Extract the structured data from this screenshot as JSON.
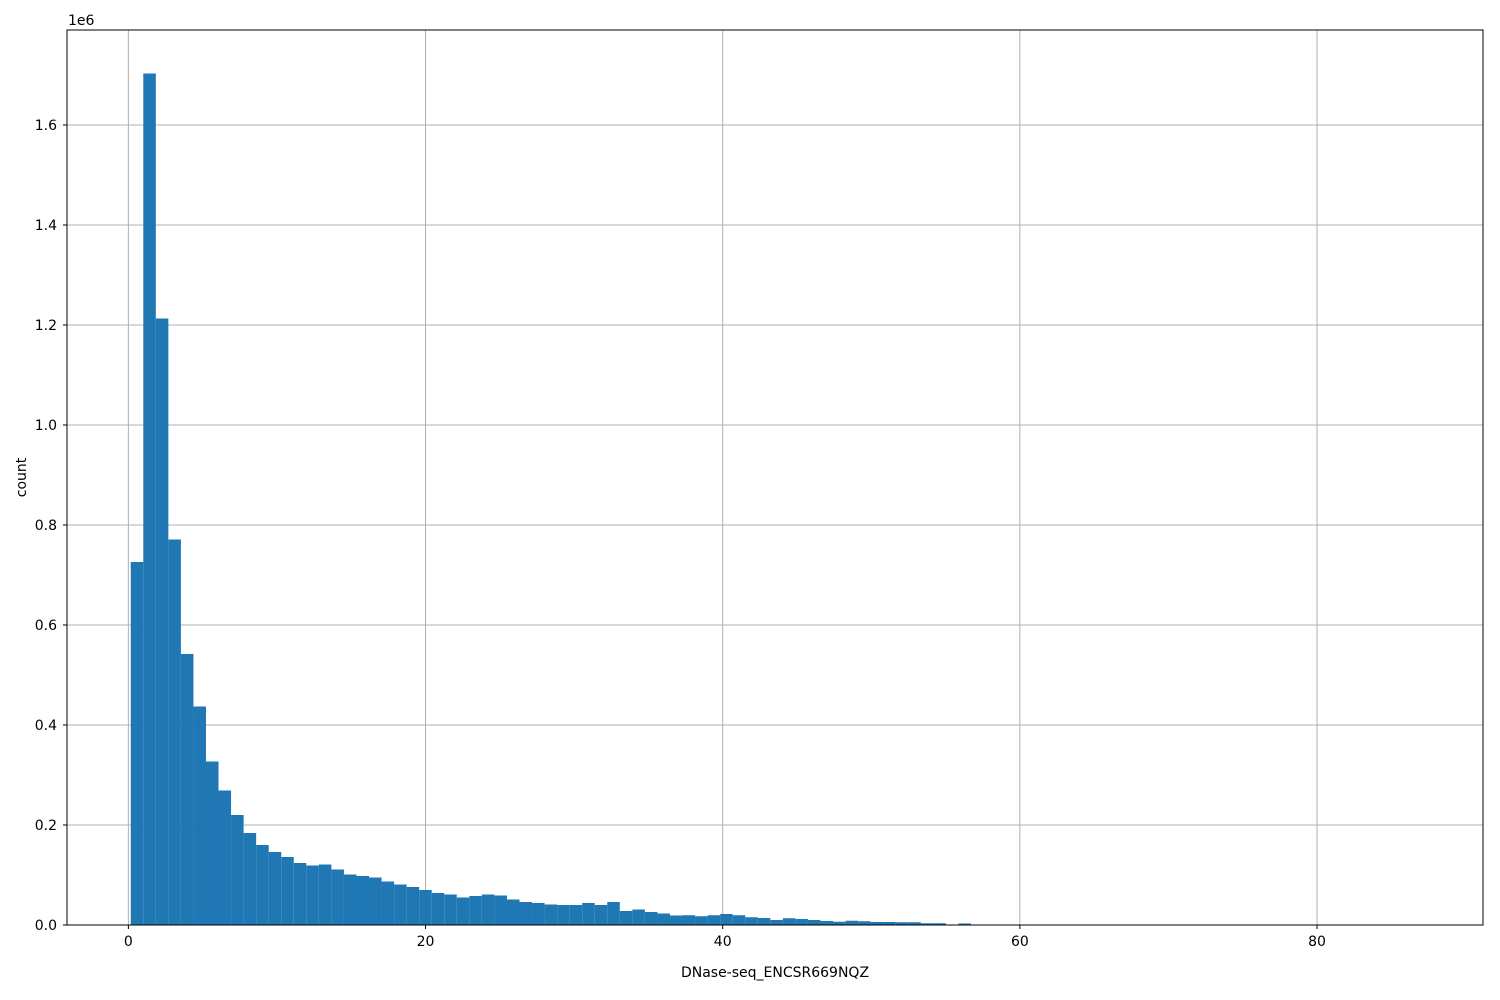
{
  "figure": {
    "background": "#ffffff",
    "xlabel": "DNase-seq_ENCSR669NQZ",
    "ylabel": "count",
    "offset_text": "1e6"
  },
  "chart_data": {
    "type": "bar",
    "subtype": "histogram",
    "title": "",
    "xlabel": "DNase-seq_ENCSR669NQZ",
    "ylabel": "count",
    "y_offset_label": "1e6",
    "y_scale_factor": 1000000,
    "grid": true,
    "legend": false,
    "bar_color": "#1f77b4",
    "grid_color": "#b0b0b0",
    "spine_color": "#000000",
    "xlim": [
      -4.13,
      91.17
    ],
    "ylim": [
      0,
      1790000
    ],
    "bin_start": 0.16,
    "bin_width": 0.844,
    "counts": [
      726000,
      1703000,
      1213000,
      771000,
      542000,
      437000,
      327000,
      269000,
      220000,
      184000,
      160000,
      146000,
      136000,
      124000,
      119000,
      121000,
      111000,
      101000,
      98000,
      95000,
      87000,
      81000,
      76000,
      70000,
      64000,
      61000,
      55000,
      58000,
      61000,
      59000,
      51000,
      46000,
      44000,
      41000,
      40000,
      40000,
      44000,
      40000,
      46000,
      28000,
      31000,
      26000,
      23000,
      19000,
      19500,
      17500,
      19500,
      22000,
      19500,
      15500,
      14000,
      10000,
      13500,
      12000,
      10000,
      8000,
      6500,
      8500,
      7500,
      6000,
      6000,
      5500,
      5500,
      3500,
      3500,
      0,
      3000
    ],
    "x_ticks": [
      {
        "value": 0,
        "label": "0"
      },
      {
        "value": 20,
        "label": "20"
      },
      {
        "value": 40,
        "label": "40"
      },
      {
        "value": 60,
        "label": "60"
      },
      {
        "value": 80,
        "label": "80"
      }
    ],
    "y_ticks": [
      {
        "value": 0,
        "label": "0.0"
      },
      {
        "value": 200000,
        "label": "0.2"
      },
      {
        "value": 400000,
        "label": "0.4"
      },
      {
        "value": 600000,
        "label": "0.6"
      },
      {
        "value": 800000,
        "label": "0.8"
      },
      {
        "value": 1000000,
        "label": "1.0"
      },
      {
        "value": 1200000,
        "label": "1.2"
      },
      {
        "value": 1400000,
        "label": "1.4"
      },
      {
        "value": 1600000,
        "label": "1.6"
      }
    ]
  }
}
